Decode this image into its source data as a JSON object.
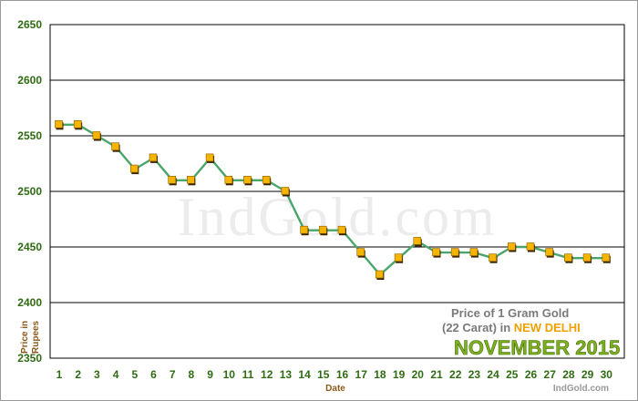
{
  "chart_data": {
    "type": "line",
    "x": [
      1,
      2,
      3,
      4,
      5,
      6,
      7,
      8,
      9,
      10,
      11,
      12,
      13,
      14,
      15,
      16,
      17,
      18,
      19,
      20,
      21,
      22,
      23,
      24,
      25,
      26,
      27,
      28,
      29,
      30
    ],
    "series": [
      {
        "values": [
          2560,
          2560,
          2550,
          2540,
          2520,
          2530,
          2510,
          2510,
          2530,
          2510,
          2510,
          2510,
          2500,
          2465,
          2465,
          2465,
          2445,
          2425,
          2440,
          2455,
          2445,
          2445,
          2445,
          2440,
          2450,
          2450,
          2445,
          2440,
          2440,
          2440
        ]
      }
    ],
    "ylim": [
      2350,
      2650
    ],
    "yticks": [
      "2350",
      "2400",
      "2450",
      "2500",
      "2550",
      "2600",
      "2650"
    ],
    "xticks": [
      "1",
      "2",
      "3",
      "4",
      "5",
      "6",
      "7",
      "8",
      "9",
      "10",
      "11",
      "12",
      "13",
      "14",
      "15",
      "16",
      "17",
      "18",
      "19",
      "20",
      "21",
      "22",
      "23",
      "24",
      "25",
      "26",
      "27",
      "28",
      "29",
      "30"
    ],
    "xlabel": "Date",
    "ylabel_line1": "Price in",
    "ylabel_line2": "Rupees",
    "grid": "horizontal",
    "watermark": "IndGold.com",
    "caption_line1": "Price of 1 Gram Gold",
    "caption_line2a": "(22 Carat) in ",
    "caption_city": "NEW DELHI",
    "caption_month": "NOVEMBER 2015",
    "site": "IndGold.com",
    "colors": {
      "line": "#4aa56a",
      "marker": "#f5b400",
      "marker_shadow": "#3a2600",
      "tick": "#2e6b12",
      "axis_title": "#8b5a1a",
      "grid": "#000000"
    }
  }
}
